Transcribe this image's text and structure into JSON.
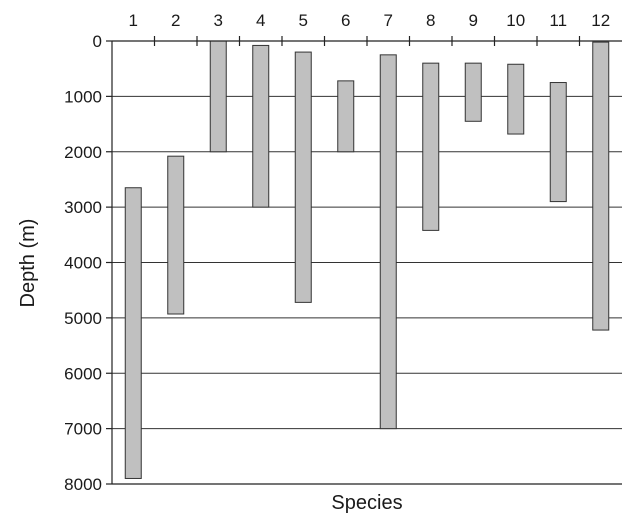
{
  "chart_data": {
    "type": "bar",
    "orientation": "vertical-range",
    "categories": [
      "1",
      "2",
      "3",
      "4",
      "5",
      "6",
      "7",
      "8",
      "9",
      "10",
      "11",
      "12"
    ],
    "ranges": [
      {
        "category": "1",
        "min": 2650,
        "max": 7900
      },
      {
        "category": "2",
        "min": 2080,
        "max": 4930
      },
      {
        "category": "3",
        "min": 0,
        "max": 2000
      },
      {
        "category": "4",
        "min": 80,
        "max": 3000
      },
      {
        "category": "5",
        "min": 200,
        "max": 4720
      },
      {
        "category": "6",
        "min": 720,
        "max": 2000
      },
      {
        "category": "7",
        "min": 250,
        "max": 7000
      },
      {
        "category": "8",
        "min": 400,
        "max": 3420
      },
      {
        "category": "9",
        "min": 400,
        "max": 1450
      },
      {
        "category": "10",
        "min": 420,
        "max": 1680
      },
      {
        "category": "11",
        "min": 750,
        "max": 2900
      },
      {
        "category": "12",
        "min": 20,
        "max": 5220
      }
    ],
    "title": "",
    "xlabel": "Species",
    "ylabel": "Depth (m)",
    "ylim": [
      0,
      8000
    ],
    "y_inverted": true,
    "yticks": [
      0,
      1000,
      2000,
      3000,
      4000,
      5000,
      6000,
      7000,
      8000
    ],
    "grid": "horizontal",
    "bar_fill": "#c0c0c0",
    "bar_stroke": "#333333"
  }
}
